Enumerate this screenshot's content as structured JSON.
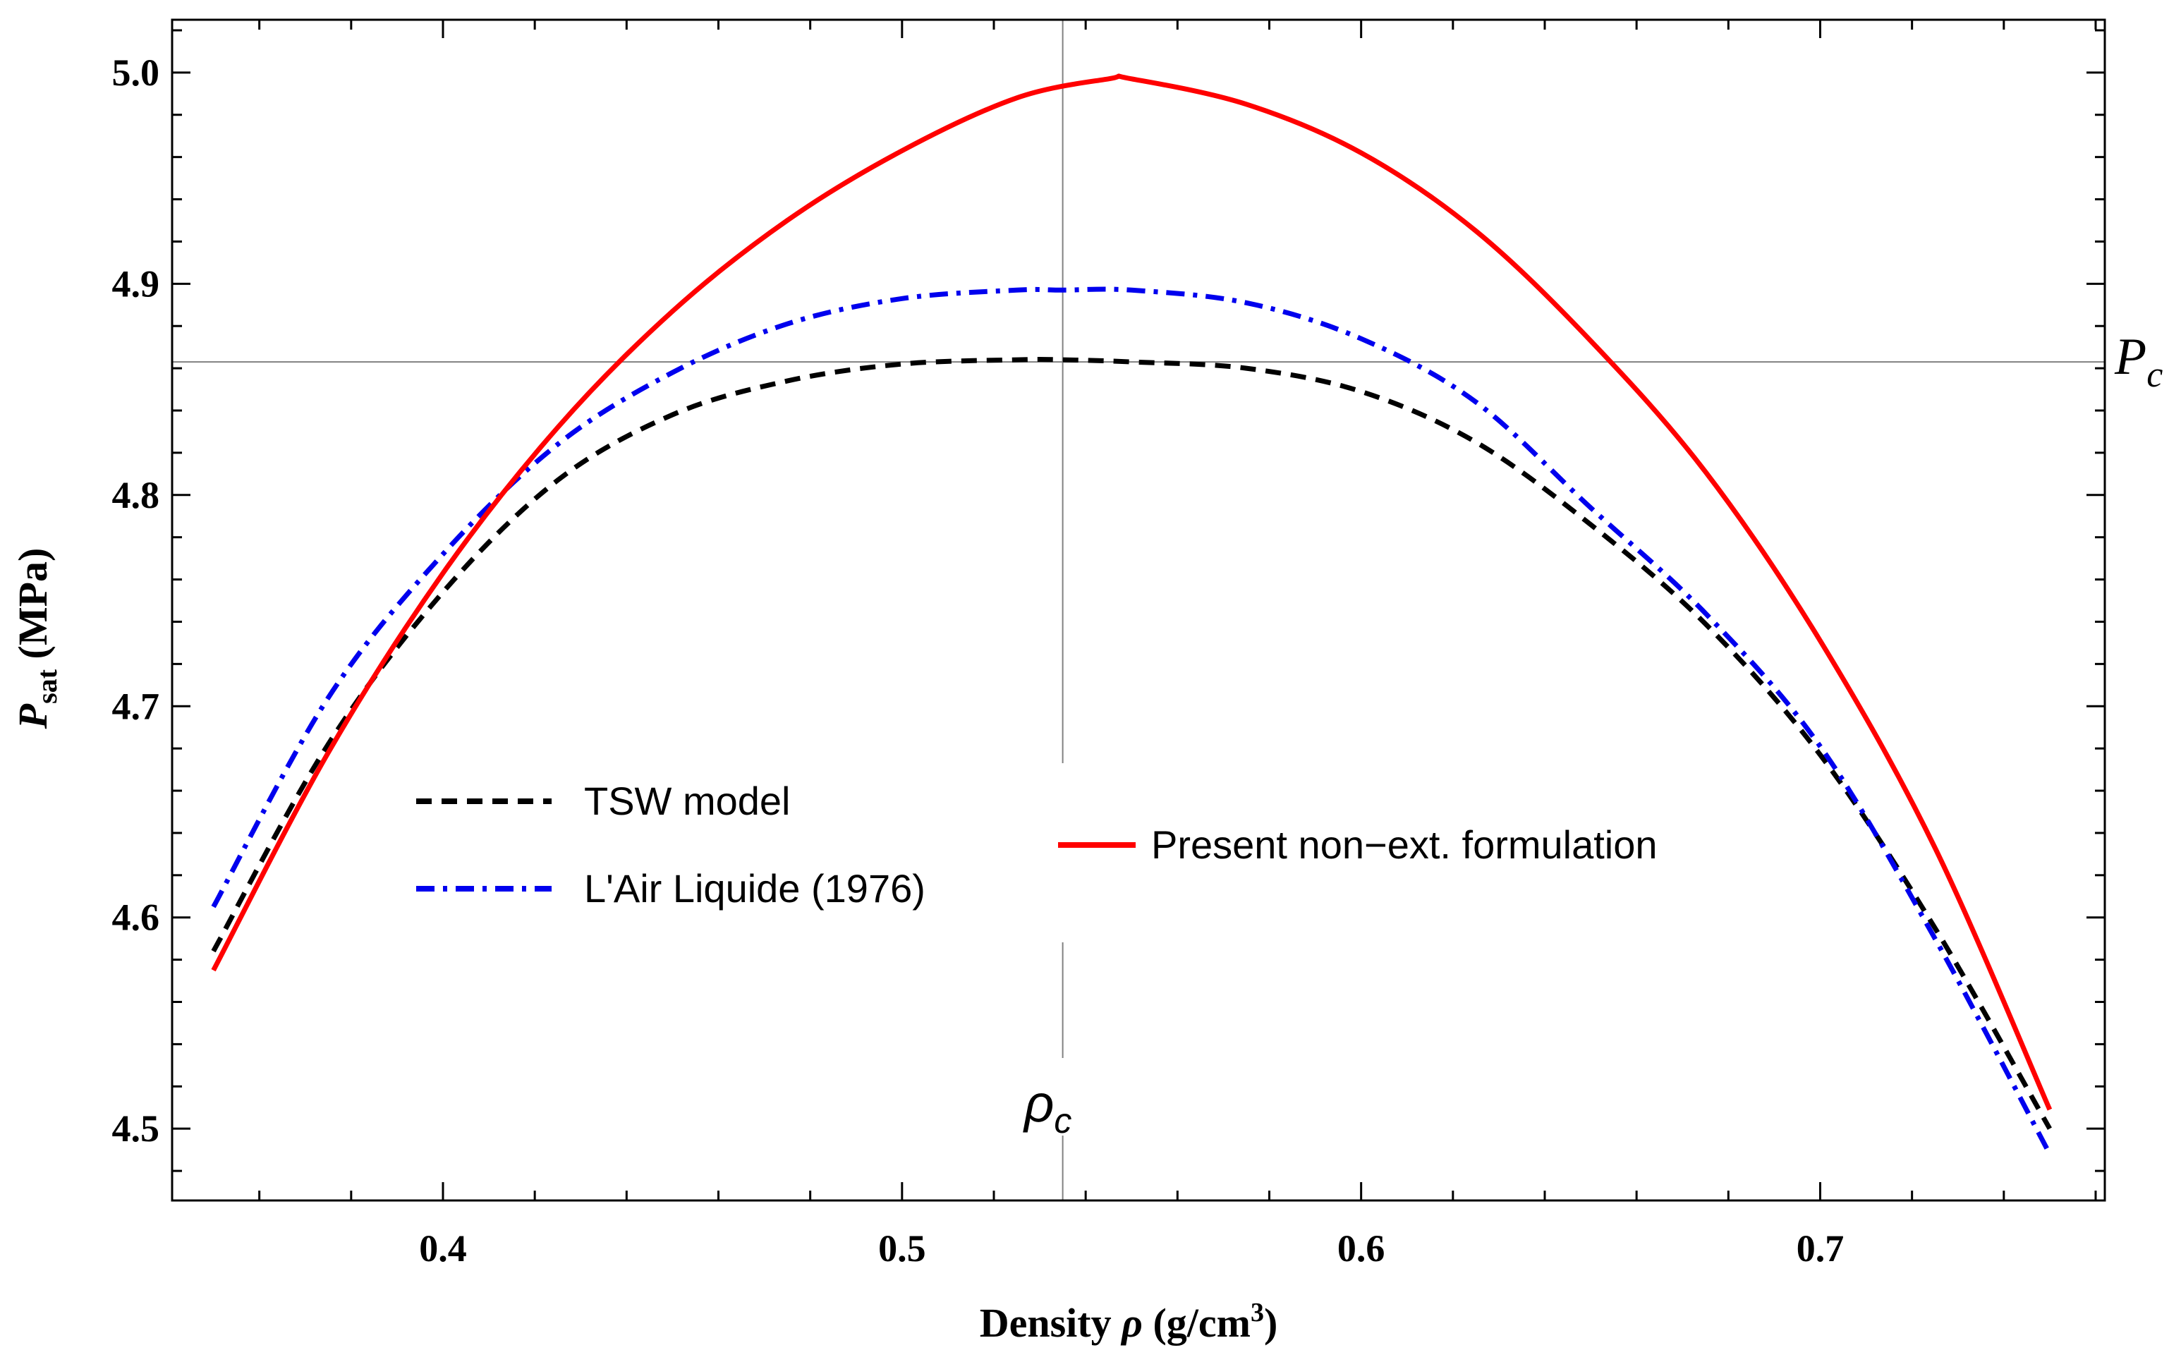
{
  "chart_data": {
    "type": "line",
    "title": "",
    "xlabel": {
      "prefix": "Density ",
      "symbol": "ρ",
      "unit": " (g/cm",
      "sup": "3",
      "suffix": ")"
    },
    "ylabel": {
      "symbol": "P",
      "sub": "sat",
      "unit": " (MPa)"
    },
    "xlim": [
      0.341,
      0.762
    ],
    "ylim": [
      4.466,
      5.025
    ],
    "xticks": [
      0.4,
      0.5,
      0.6,
      0.7
    ],
    "xtick_labels": [
      "0.4",
      "0.5",
      "0.6",
      "0.7"
    ],
    "yticks": [
      4.5,
      4.6,
      4.7,
      4.8,
      4.9,
      5.0
    ],
    "ytick_labels": [
      "4.5",
      "4.6",
      "4.7",
      "4.8",
      "4.9",
      "5.0"
    ],
    "reference_lines": {
      "rho_c": {
        "value": 0.535,
        "label": "ρ",
        "sub": "c"
      },
      "P_c": {
        "value": 4.863,
        "label": "P",
        "sub": "c"
      }
    },
    "legend_labels": {
      "tsw": "TSW model",
      "air": "L'Air Liquide (1976)",
      "present": "Present non−ext. formulation"
    },
    "series": [
      {
        "name": "TSW model",
        "color": "#000000",
        "style": "dashed",
        "x": [
          0.35,
          0.375,
          0.4,
          0.425,
          0.45,
          0.475,
          0.5,
          0.525,
          0.535,
          0.55,
          0.575,
          0.6,
          0.625,
          0.65,
          0.675,
          0.7,
          0.725,
          0.75
        ],
        "y": [
          4.584,
          4.682,
          4.754,
          4.807,
          4.838,
          4.854,
          4.862,
          4.864,
          4.864,
          4.863,
          4.86,
          4.849,
          4.825,
          4.786,
          4.739,
          4.677,
          4.595,
          4.5
        ]
      },
      {
        "name": "L'Air Liquide (1976)",
        "color": "#0000ee",
        "style": "dashdot",
        "x": [
          0.35,
          0.375,
          0.4,
          0.425,
          0.45,
          0.475,
          0.5,
          0.525,
          0.535,
          0.55,
          0.575,
          0.6,
          0.625,
          0.65,
          0.675,
          0.7,
          0.725,
          0.75
        ],
        "y": [
          4.605,
          4.704,
          4.772,
          4.824,
          4.858,
          4.881,
          4.893,
          4.897,
          4.897,
          4.897,
          4.891,
          4.874,
          4.844,
          4.794,
          4.744,
          4.681,
          4.59,
          4.488
        ]
      },
      {
        "name": "Present non−ext. formulation",
        "color": "#ff0000",
        "style": "solid",
        "x": [
          0.35,
          0.375,
          0.4,
          0.425,
          0.45,
          0.475,
          0.5,
          0.525,
          0.545,
          0.55,
          0.575,
          0.6,
          0.625,
          0.65,
          0.675,
          0.7,
          0.725,
          0.75
        ],
        "y": [
          4.575,
          4.678,
          4.763,
          4.832,
          4.887,
          4.93,
          4.963,
          4.988,
          4.997,
          4.997,
          4.985,
          4.962,
          4.925,
          4.873,
          4.811,
          4.731,
          4.633,
          4.509
        ]
      }
    ]
  }
}
